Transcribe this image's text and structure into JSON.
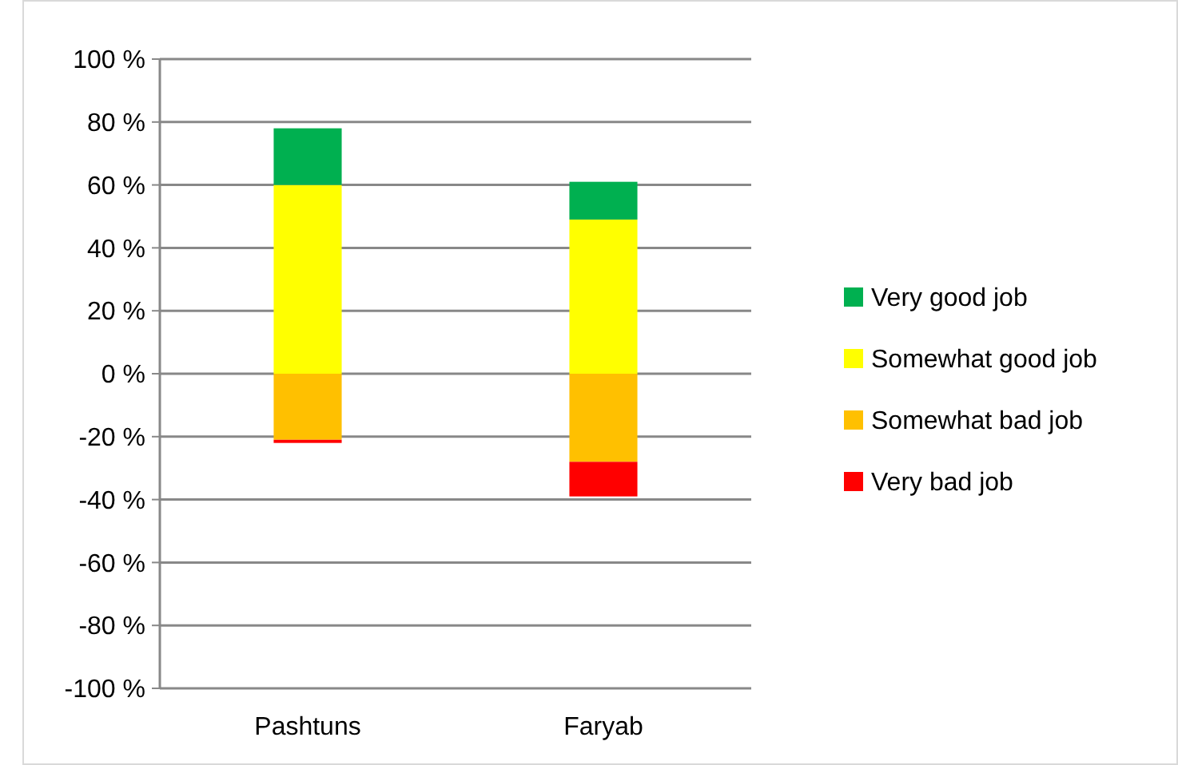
{
  "chart_data": {
    "type": "bar",
    "stacked": true,
    "categories": [
      "Pashtuns",
      "Faryab"
    ],
    "series": [
      {
        "name": "Somewhat good job",
        "color": "#ffff00",
        "values": [
          60,
          49
        ]
      },
      {
        "name": "Very good job",
        "color": "#00b050",
        "values": [
          18,
          12
        ]
      },
      {
        "name": "Somewhat bad job",
        "color": "#ffc000",
        "values": [
          -21,
          -28
        ]
      },
      {
        "name": "Very bad job",
        "color": "#ff0000",
        "values": [
          -1,
          -11
        ]
      }
    ],
    "ylim": [
      -100,
      100
    ],
    "yticks": [
      {
        "value": -100,
        "label": "-100 %"
      },
      {
        "value": -80,
        "label": "-80 %"
      },
      {
        "value": -60,
        "label": "-60 %"
      },
      {
        "value": -40,
        "label": "-40 %"
      },
      {
        "value": -20,
        "label": "-20 %"
      },
      {
        "value": 0,
        "label": "0 %"
      },
      {
        "value": 20,
        "label": "20 %"
      },
      {
        "value": 40,
        "label": "40 %"
      },
      {
        "value": 60,
        "label": "60 %"
      },
      {
        "value": 80,
        "label": "80 %"
      },
      {
        "value": 100,
        "label": "100 %"
      }
    ],
    "grid": "y",
    "legend": "right"
  }
}
